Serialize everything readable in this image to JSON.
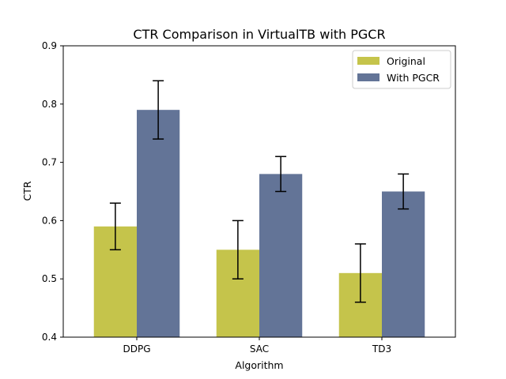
{
  "chart_data": {
    "type": "bar",
    "title": "CTR Comparison in VirtualTB with PGCR",
    "xlabel": "Algorithm",
    "ylabel": "CTR",
    "ylim": [
      0.4,
      0.9
    ],
    "yticks": [
      "0.4",
      "0.5",
      "0.6",
      "0.7",
      "0.8",
      "0.9"
    ],
    "categories": [
      "DDPG",
      "SAC",
      "TD3"
    ],
    "grid": false,
    "legend_position": "top-right",
    "series": [
      {
        "name": "Original",
        "color": "#c5c44b",
        "values": [
          0.59,
          0.55,
          0.51
        ],
        "error_low": [
          0.55,
          0.5,
          0.46
        ],
        "error_high": [
          0.63,
          0.6,
          0.56
        ]
      },
      {
        "name": "With PGCR",
        "color": "#637497",
        "values": [
          0.79,
          0.68,
          0.65
        ],
        "error_low": [
          0.74,
          0.65,
          0.62
        ],
        "error_high": [
          0.84,
          0.71,
          0.68
        ]
      }
    ]
  }
}
